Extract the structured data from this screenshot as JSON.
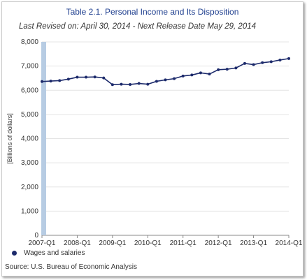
{
  "chart_data": {
    "type": "line",
    "title": "Table 2.1. Personal Income and Its Disposition",
    "subtitle": "Last Revised on: April 30, 2014 - Next Release Date May 29, 2014",
    "ylabel": "[Billions of dollars]",
    "xlabel": "",
    "ylim": [
      0,
      8000
    ],
    "yticks": [
      "0",
      "1,000",
      "2,000",
      "3,000",
      "4,000",
      "5,000",
      "6,000",
      "7,000",
      "8,000"
    ],
    "x": [
      "2007-Q1",
      "2007-Q2",
      "2007-Q3",
      "2007-Q4",
      "2008-Q1",
      "2008-Q2",
      "2008-Q3",
      "2008-Q4",
      "2009-Q1",
      "2009-Q2",
      "2009-Q3",
      "2009-Q4",
      "2010-Q1",
      "2010-Q2",
      "2010-Q3",
      "2010-Q4",
      "2011-Q1",
      "2011-Q2",
      "2011-Q3",
      "2011-Q4",
      "2012-Q1",
      "2012-Q2",
      "2012-Q3",
      "2012-Q4",
      "2013-Q1",
      "2013-Q2",
      "2013-Q3",
      "2013-Q4",
      "2014-Q1"
    ],
    "xticks": [
      "2007-Q1",
      "2008-Q1",
      "2009-Q1",
      "2010-Q1",
      "2011-Q1",
      "2012-Q1",
      "2013-Q1",
      "2014-Q1"
    ],
    "series": [
      {
        "name": "Wages and salaries",
        "color": "#1c2a6b",
        "values": [
          6360,
          6380,
          6400,
          6460,
          6540,
          6540,
          6550,
          6510,
          6230,
          6250,
          6240,
          6280,
          6250,
          6370,
          6430,
          6480,
          6590,
          6630,
          6720,
          6670,
          6850,
          6870,
          6920,
          7110,
          7060,
          7140,
          7180,
          7250,
          7310
        ]
      }
    ],
    "grid": true,
    "legend": "bottom-left"
  },
  "source": "Source: U.S. Bureau of Economic Analysis"
}
